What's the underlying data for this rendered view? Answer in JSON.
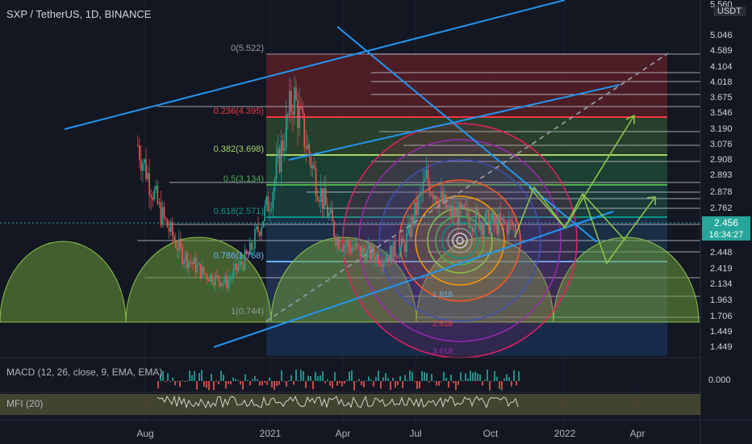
{
  "header": {
    "title": "SXP / TetherUS, 1D, BINANCE"
  },
  "price_scale": {
    "currency": "USDT",
    "ticks": [
      "5.560",
      "5.046",
      "4.589",
      "4.104",
      "4.018",
      "3.675",
      "3.546",
      "3.190",
      "3.076",
      "2.908",
      "2.893",
      "2.878",
      "2.762",
      "2.448",
      "2.419",
      "2.134",
      "1.963",
      "1.706",
      "1.449",
      "1.449"
    ],
    "current_price": "2.456",
    "countdown": "16:34:27"
  },
  "time_axis": {
    "labels": [
      "Aug",
      "2021",
      "Apr",
      "Jul",
      "Oct",
      "2022",
      "Apr"
    ]
  },
  "fibonacci": {
    "levels": [
      {
        "label": "0(5.522)",
        "color": "#9598a1"
      },
      {
        "label": "0.236(4.395)",
        "color": "#f23645"
      },
      {
        "label": "0.382(3.698)",
        "color": "#a5d66a"
      },
      {
        "label": "0.5(3.134)",
        "color": "#4caf50"
      },
      {
        "label": "0.618(2.571)",
        "color": "#089981"
      },
      {
        "label": "0.786(1.768)",
        "color": "#64b5f6"
      },
      {
        "label": "1(0.744)",
        "color": "#9598a1"
      }
    ],
    "ext_labels": [
      "1.618",
      "2.618",
      "3.618"
    ]
  },
  "indicators": {
    "macd": {
      "label": "MACD (12, 26, close, 9, EMA, EMA)",
      "value": "0.000"
    },
    "mfi": {
      "label": "MFI (20)"
    }
  },
  "colors": {
    "up": "#26a69a",
    "down": "#ef5350",
    "trend": "#2196f3",
    "arrow": "#8bc34a",
    "green_arc": "#6b9a3a"
  },
  "chart_data": {
    "type": "candlestick",
    "title": "SXP / TetherUS, 1D, BINANCE",
    "y_unit": "USDT",
    "ylim": [
      1.449,
      5.56
    ],
    "x_range": [
      "2020-06",
      "2022-05"
    ],
    "series": [
      {
        "name": "SXP / TetherUS",
        "close": [
          3.9,
          2.7,
          1.95,
          1.6,
          1.45,
          1.95,
          3.0,
          4.8,
          3.3,
          2.2,
          2.0,
          1.9,
          2.1,
          3.3,
          2.7,
          2.6,
          2.5,
          2.456
        ]
      }
    ],
    "last_price": 2.456
  }
}
